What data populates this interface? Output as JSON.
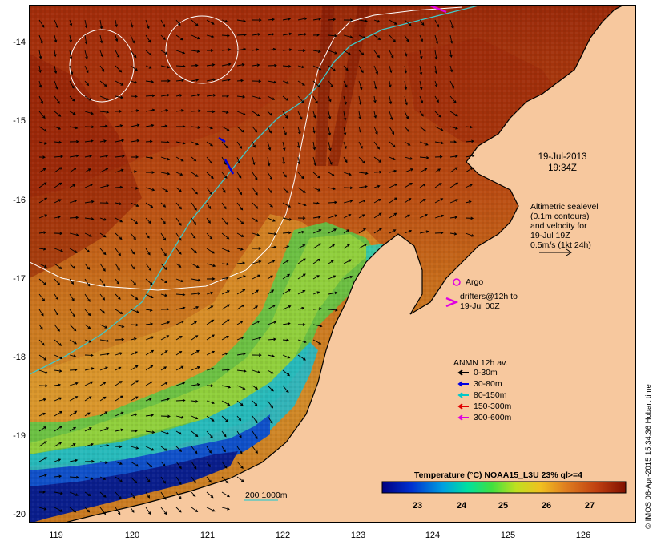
{
  "axes": {
    "lat_ticks": [
      "-14",
      "-15",
      "-16",
      "-17",
      "-18",
      "-19",
      "-20"
    ],
    "lon_ticks": [
      "119",
      "120",
      "121",
      "122",
      "123",
      "124",
      "125",
      "126"
    ]
  },
  "timestamp": {
    "date": "19-Jul-2013",
    "time": "19:34Z"
  },
  "altimetry_note": [
    "Altimetric sealevel",
    "(0.1m contours)",
    "and velocity for",
    "19-Jul 19Z",
    "0.5m/s (1kt 24h)"
  ],
  "argo": {
    "label": "Argo",
    "color": "#e000e0"
  },
  "drifters": {
    "label_line1": "drifters@12h to",
    "label_line2": "19-Jul 00Z",
    "color": "#e000e0"
  },
  "anmn_legend": {
    "title": "ANMN 12h av.",
    "items": [
      {
        "label": "0-30m",
        "color": "#000000"
      },
      {
        "label": "30-80m",
        "color": "#0000e0"
      },
      {
        "label": "80-150m",
        "color": "#00c8c8"
      },
      {
        "label": "150-300m",
        "color": "#e00000"
      },
      {
        "label": "300-600m",
        "color": "#e000e0"
      }
    ]
  },
  "colorbar": {
    "title": "Temperature (°C) NOAA15_L3U 23% ql>=4",
    "ticks": [
      "23",
      "24",
      "25",
      "26",
      "27"
    ]
  },
  "isobath_label": "200  1000m",
  "credit": "© IMOS 06-Apr-2015 15:34:36 Hobart time",
  "colors": {
    "land": "#f7c89e",
    "warm": "#b33a10",
    "cold": "#0a1e8c",
    "contour": "#ffffff",
    "isobath": "#40c8c8"
  }
}
